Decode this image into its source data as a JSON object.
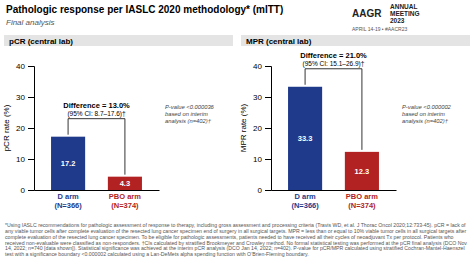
{
  "title": "Pathologic response per IASLC 2020 methodology* (mITT)",
  "subtitle": "Final analysis",
  "annotations": [
    "AAGR",
    "ANNUAL",
    "MEETING",
    "2023",
    "APRIL 14-19 • #AACR23"
  ],
  "footnote": "*Using IASLC recommendations for pathologic assessment of response to therapy, including gross assessment and processing criteria (Travis WD, et al. J Thorac Oncol 2020;12:733-45). pCR = lack of any viable tumor cells after complete evaluation of the resected lung cancer specimen end of surgery in all surgical targets. MPR = less than or equal to 10% viable tumor cells in all surgical targets after complete evaluation of the resected lung cancer specimen. To be eligible for pathologic assessments, patients needed to have received all their cycles of neoadjuvant Tx per protocol. Patients who received non-evaluable were classified as non-responders. †CIs calculated by stratified Brookmeyer and Crowley method. No formal statistical testing was performed at the pCR final analysis (DCO Nov 14, 2022; n=740 [data shown]). Statistical significance was achieved at the interim pCR analysis (DCO Jan 14, 2022; n=402). P-value for pCR/MPR calculated using stratified Cochran-Mantel-Haenszel test with a significance boundary <0.000002 calculated using a Lan-DeMets alpha spending function with O’Brien-Fleming boundary.",
  "chart_data": [
    {
      "type": "bar",
      "title": "pCR (central lab)",
      "categories": [
        "D arm\n(N=366)",
        "PBO arm\n(N=374)"
      ],
      "values": [
        17.2,
        4.3
      ],
      "colors": [
        "#1f3a8a",
        "#b22222"
      ],
      "ylim": [
        0,
        40
      ],
      "yticks": [
        0,
        10,
        20,
        30,
        40
      ],
      "ylabel": "pCR rate (%)",
      "data_labels": true,
      "grid": false,
      "annotations": [
        "Difference = 13.0%",
        "(95% CI: 8.7–17.6)†",
        "P-value <0.000036\nbased on interim\nanalysis (n=402)†"
      ]
    },
    {
      "type": "bar",
      "title": "MPR (central lab)",
      "categories": [
        "D arm\n(N=366)",
        "PBO arm\n(N=374)"
      ],
      "values": [
        33.3,
        12.3
      ],
      "colors": [
        "#1f3a8a",
        "#b22222"
      ],
      "ylim": [
        0,
        40
      ],
      "yticks": [
        0,
        10,
        20,
        30,
        40
      ],
      "ylabel": "MPR rate (%)",
      "data_labels": true,
      "grid": false,
      "annotations": [
        "Difference = 21.0%",
        "(95% CI: 15.1–26.9)†",
        "P-value <0.000002\nbased on interim\nanalysis (n=402)†"
      ]
    }
  ]
}
